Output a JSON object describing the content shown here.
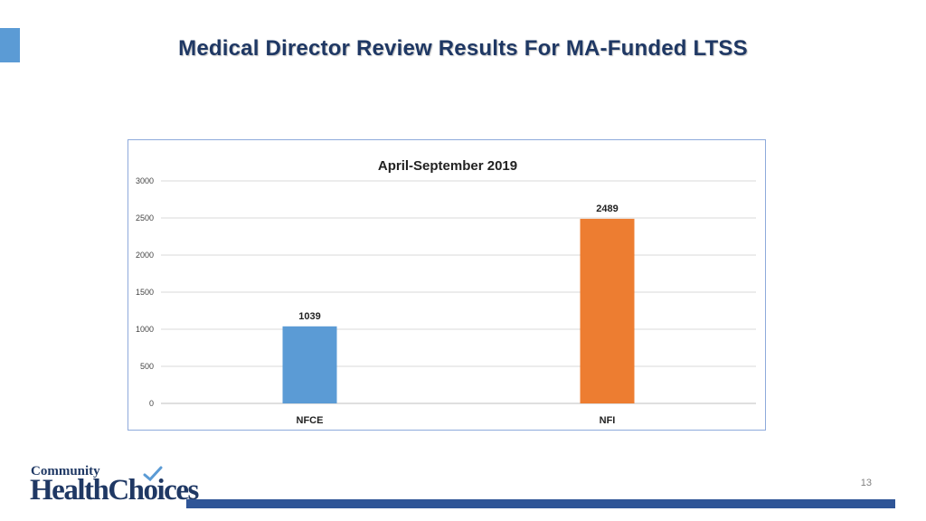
{
  "slide": {
    "title": "Medical Director Review Results For MA-Funded LTSS",
    "page_number": "13"
  },
  "logo": {
    "top_text": "Community",
    "bottom_text": "HealthChoices"
  },
  "colors": {
    "title": "#1f3864",
    "accent": "#5b9bd5",
    "footer_bar": "#2f5597"
  },
  "chart_data": {
    "type": "bar",
    "title": "April-September 2019",
    "categories": [
      "NFCE",
      "NFI"
    ],
    "values": [
      1039,
      2489
    ],
    "bar_colors": [
      "#5b9bd5",
      "#ed7d31"
    ],
    "data_labels": [
      "1039",
      "2489"
    ],
    "ylim": [
      0,
      3000
    ],
    "yticks": [
      0,
      500,
      1000,
      1500,
      2000,
      2500,
      3000
    ],
    "xlabel": "",
    "ylabel": "",
    "grid": true,
    "legend": "none"
  }
}
